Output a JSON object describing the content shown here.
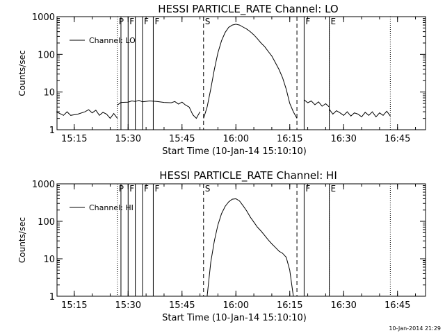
{
  "footer": {
    "timestamp": "10-Jan-2014 21:29"
  },
  "chart_data": [
    {
      "type": "line",
      "title": "HESSI PARTICLE_RATE Channel: LO",
      "xlabel": "Start Time (10-Jan-14 15:10:10)",
      "ylabel": "Counts/sec",
      "yscale": "log",
      "ylim": [
        1,
        1000
      ],
      "xlim_minutes": [
        15.17,
        16.88
      ],
      "x_ticks": [
        "15:15",
        "15:30",
        "15:45",
        "16:00",
        "16:15",
        "16:30",
        "16:45"
      ],
      "y_ticks": [
        "1",
        "10",
        "100",
        "1000"
      ],
      "legend": {
        "position": "top-left",
        "label": "Channel: LO"
      },
      "markers": [
        {
          "label": "P",
          "time": "15:27",
          "style": "dotted"
        },
        {
          "label": "",
          "time": "15:28",
          "style": "solid"
        },
        {
          "label": "F",
          "time": "15:30",
          "style": "solid"
        },
        {
          "label": "",
          "time": "15:32",
          "style": "solid"
        },
        {
          "label": "F",
          "time": "15:34",
          "style": "solid"
        },
        {
          "label": "F",
          "time": "15:37",
          "style": "solid"
        },
        {
          "label": "S",
          "time": "15:51",
          "style": "dashed"
        },
        {
          "label": "",
          "time": "16:17",
          "style": "dashed"
        },
        {
          "label": "F",
          "time": "16:19",
          "style": "solid"
        },
        {
          "label": "E",
          "time": "16:26",
          "style": "solid"
        },
        {
          "label": "",
          "time": "16:26",
          "style": "dotted"
        },
        {
          "label": "",
          "time": "16:43",
          "style": "dotted"
        }
      ],
      "series": [
        {
          "segments": [
            {
              "x": [
                "15:10",
                "15:12",
                "15:13",
                "15:14",
                "15:16",
                "15:18",
                "15:19",
                "15:20",
                "15:21",
                "15:22",
                "15:23",
                "15:24",
                "15:25",
                "15:26",
                "15:27"
              ],
              "y": [
                3.0,
                2.4,
                3.0,
                2.4,
                2.6,
                3.0,
                3.4,
                2.8,
                3.3,
                2.4,
                2.9,
                2.6,
                2.0,
                2.7,
                2.0
              ]
            },
            {
              "x": [
                "15:27",
                "15:28",
                "15:30",
                "15:31",
                "15:32",
                "15:33",
                "15:34",
                "15:36",
                "15:38",
                "15:40",
                "15:42",
                "15:43",
                "15:44",
                "15:45",
                "15:46",
                "15:47",
                "15:48",
                "15:49",
                "15:50"
              ],
              "y": [
                4.5,
                5.3,
                5.4,
                5.8,
                5.6,
                6.0,
                5.5,
                5.8,
                5.6,
                5.3,
                5.2,
                5.6,
                4.8,
                5.4,
                4.5,
                4.0,
                2.5,
                2.0,
                3.0
              ]
            },
            {
              "x": [
                "15:51",
                "15:52",
                "15:53",
                "15:54",
                "15:55",
                "15:56",
                "15:57",
                "15:58",
                "15:59",
                "16:00",
                "16:01",
                "16:02",
                "16:03",
                "16:04",
                "16:05",
                "16:06",
                "16:07",
                "16:08",
                "16:09",
                "16:10",
                "16:11",
                "16:12",
                "16:13",
                "16:14",
                "16:15",
                "16:16",
                "16:17"
              ],
              "y": [
                2.0,
                4.0,
                12,
                40,
                110,
                230,
                380,
                520,
                600,
                630,
                600,
                530,
                470,
                400,
                330,
                260,
                200,
                160,
                120,
                90,
                60,
                40,
                24,
                12,
                5,
                3,
                2
              ]
            },
            {
              "x": [
                "16:19",
                "16:20",
                "16:21",
                "16:22",
                "16:23",
                "16:24",
                "16:25",
                "16:26"
              ],
              "y": [
                6.2,
                5.2,
                5.8,
                4.6,
                5.5,
                4.2,
                4.9,
                4.0
              ]
            },
            {
              "x": [
                "16:26",
                "16:27",
                "16:28",
                "16:29",
                "16:30",
                "16:31",
                "16:32",
                "16:33",
                "16:34",
                "16:35",
                "16:36",
                "16:37",
                "16:38",
                "16:39",
                "16:40",
                "16:41",
                "16:42",
                "16:43"
              ],
              "y": [
                3.5,
                2.6,
                3.2,
                2.8,
                2.4,
                3.0,
                2.3,
                2.8,
                2.6,
                2.2,
                2.9,
                2.4,
                3.0,
                2.2,
                2.8,
                2.4,
                3.1,
                2.3
              ]
            }
          ]
        }
      ]
    },
    {
      "type": "line",
      "title": "HESSI PARTICLE_RATE Channel: HI",
      "xlabel": "Start Time (10-Jan-14 15:10:10)",
      "ylabel": "Counts/sec",
      "yscale": "log",
      "ylim": [
        1,
        1000
      ],
      "xlim_minutes": [
        15.17,
        16.88
      ],
      "x_ticks": [
        "15:15",
        "15:30",
        "15:45",
        "16:00",
        "16:15",
        "16:30",
        "16:45"
      ],
      "y_ticks": [
        "1",
        "10",
        "100",
        "1000"
      ],
      "legend": {
        "position": "top-left",
        "label": "Channel: HI"
      },
      "markers": [
        {
          "label": "P",
          "time": "15:27",
          "style": "dotted"
        },
        {
          "label": "",
          "time": "15:28",
          "style": "solid"
        },
        {
          "label": "F",
          "time": "15:30",
          "style": "solid"
        },
        {
          "label": "",
          "time": "15:32",
          "style": "solid"
        },
        {
          "label": "F",
          "time": "15:34",
          "style": "solid"
        },
        {
          "label": "F",
          "time": "15:37",
          "style": "solid"
        },
        {
          "label": "S",
          "time": "15:51",
          "style": "dashed"
        },
        {
          "label": "",
          "time": "16:17",
          "style": "dashed"
        },
        {
          "label": "F",
          "time": "16:19",
          "style": "solid"
        },
        {
          "label": "E",
          "time": "16:26",
          "style": "solid"
        },
        {
          "label": "",
          "time": "16:26",
          "style": "dotted"
        },
        {
          "label": "",
          "time": "16:43",
          "style": "dotted"
        }
      ],
      "series": [
        {
          "segments": [
            {
              "x": [
                "15:52",
                "15:53",
                "15:54",
                "15:55",
                "15:56",
                "15:57",
                "15:58",
                "15:59",
                "16:00",
                "16:01",
                "16:02",
                "16:03",
                "16:04",
                "16:05",
                "16:06",
                "16:07",
                "16:08",
                "16:09",
                "16:10",
                "16:11",
                "16:12",
                "16:13",
                "16:14",
                "16:15",
                "16:16"
              ],
              "y": [
                1.0,
                8,
                30,
                80,
                160,
                250,
                330,
                390,
                400,
                350,
                260,
                190,
                130,
                95,
                70,
                55,
                42,
                32,
                25,
                20,
                16,
                14,
                11,
                5,
                1.0
              ]
            }
          ]
        }
      ]
    }
  ]
}
